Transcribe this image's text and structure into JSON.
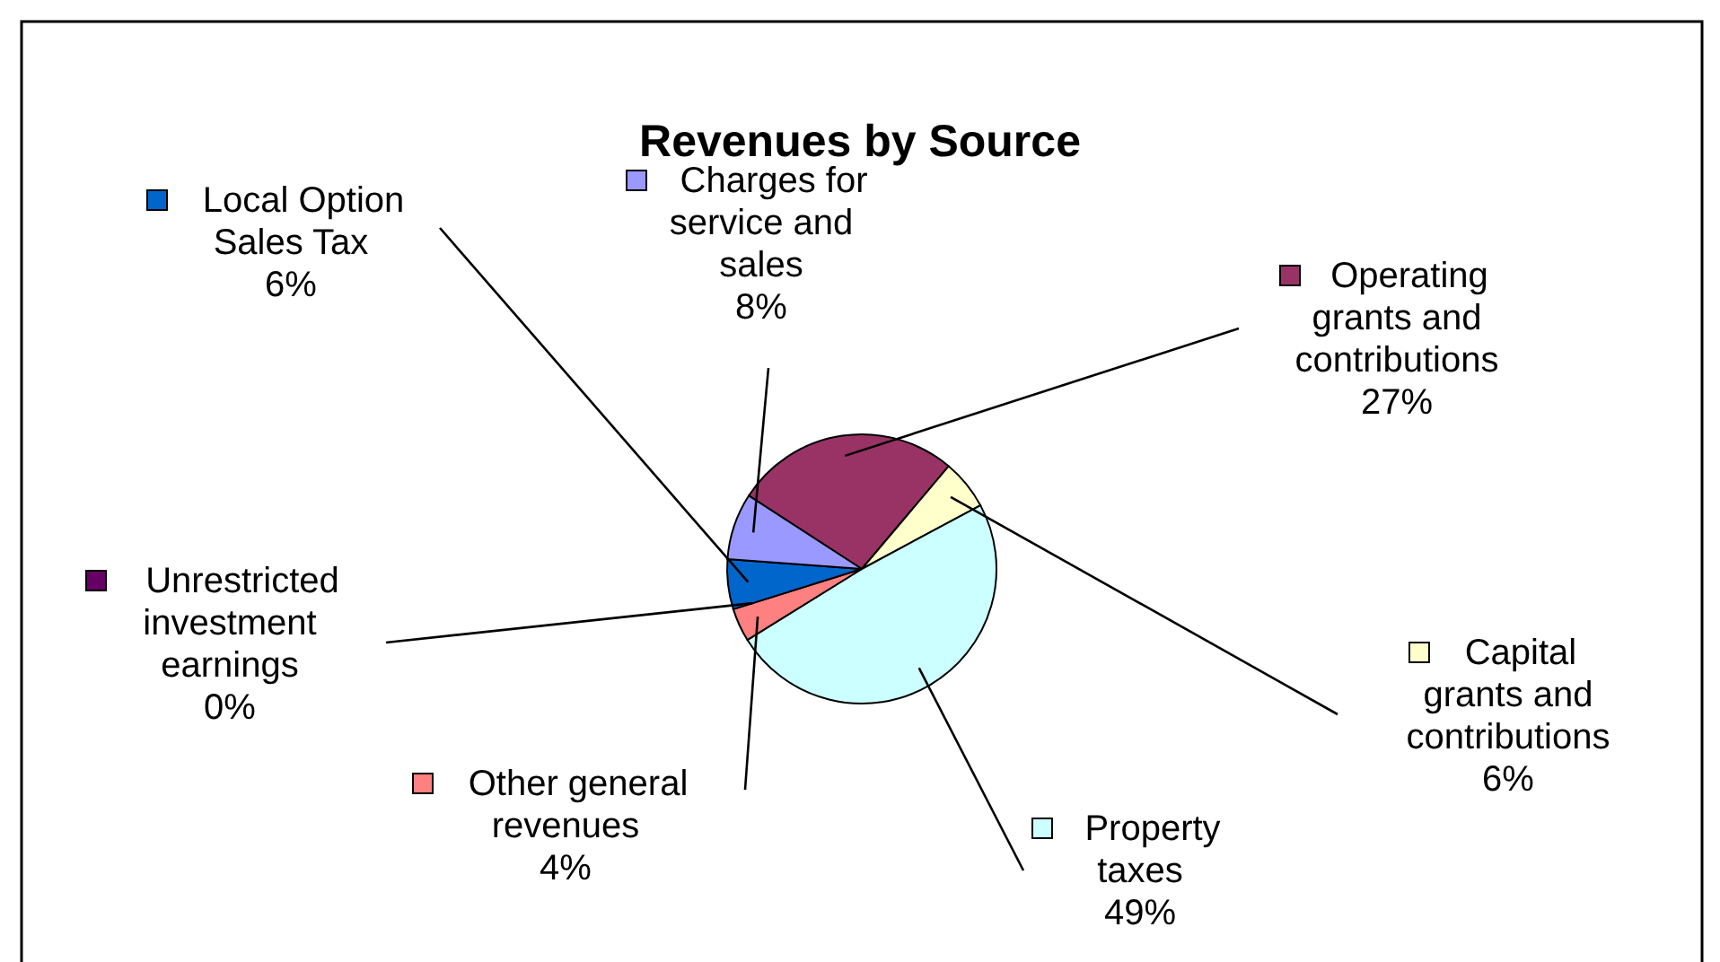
{
  "chart_data": {
    "type": "pie",
    "title": "Revenues by Source",
    "categories": [
      "Operating grants and contributions",
      "Capital grants and contributions",
      "Property taxes",
      "Other general revenues",
      "Unrestricted investment earnings",
      "Local Option Sales Tax",
      "Charges for service and sales"
    ],
    "values": [
      27,
      6,
      49,
      4,
      0,
      6,
      8
    ],
    "colors": [
      "#993366",
      "#ffffcc",
      "#ccffff",
      "#ff8080",
      "#660066",
      "#0066cc",
      "#9999ff"
    ],
    "value_labels": [
      "27%",
      "6%",
      "49%",
      "4%",
      "0%",
      "6%",
      "8%"
    ],
    "data_labels": true,
    "legend": true
  }
}
